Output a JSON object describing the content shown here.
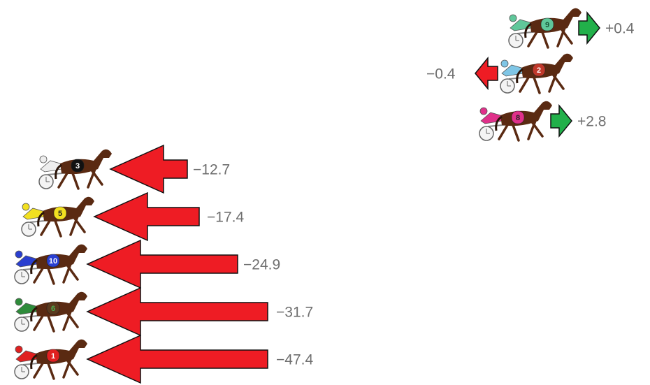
{
  "horses": [
    {
      "number": "9",
      "change": "+0.4"
    },
    {
      "number": "2",
      "change": "−0.4"
    },
    {
      "number": "8",
      "change": "+2.8"
    },
    {
      "number": "3",
      "change": "−12.7"
    },
    {
      "number": "5",
      "change": "−17.4"
    },
    {
      "number": "10",
      "change": "−24.9"
    },
    {
      "number": "6",
      "change": "−31.7"
    },
    {
      "number": "1",
      "change": "−47.4"
    }
  ]
}
